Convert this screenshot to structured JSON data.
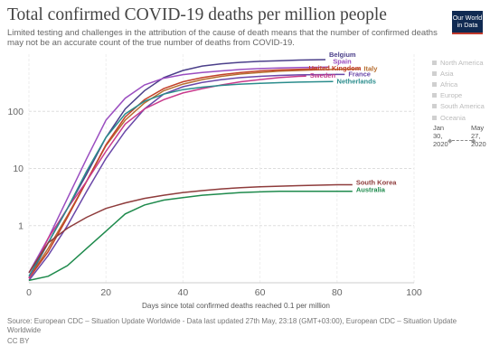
{
  "header": {
    "title": "Total confirmed COVID-19 deaths per million people",
    "subtitle": "Limited testing and challenges in the attribution of the cause of death means that the number of confirmed deaths may not be an accurate count of the true number of deaths from COVID-19."
  },
  "logo": {
    "line1": "Our World",
    "line2": "in Data"
  },
  "legend": {
    "items": [
      {
        "label": "North America"
      },
      {
        "label": "Asia"
      },
      {
        "label": "Africa"
      },
      {
        "label": "Europe"
      },
      {
        "label": "South America"
      },
      {
        "label": "Oceania"
      }
    ]
  },
  "timeline": {
    "start": "Jan 30, 2020",
    "end": "May 27, 2020",
    "start_l1": "Jan",
    "start_l2": "30,",
    "start_l3": "2020",
    "end_l1": "May",
    "end_l2": "27,",
    "end_l3": "2020"
  },
  "footer": {
    "source": "Source: European CDC – Situation Update Worldwide - Data last updated 27th May, 23:18 (GMT+03:00), European CDC – Situation Update Worldwide",
    "license": "CC BY"
  },
  "chart_data": {
    "type": "line",
    "title": "Total confirmed COVID-19 deaths per million people",
    "xlabel": "Days since total confirmed deaths reached 0.1 per million",
    "ylabel": "",
    "xlim": [
      0,
      100
    ],
    "ylim": [
      0.1,
      1000
    ],
    "yscale": "log",
    "x_ticks": [
      0,
      20,
      40,
      60,
      80,
      100
    ],
    "y_ticks": [
      1,
      10,
      100
    ],
    "y_tick_labels": [
      "1",
      "10",
      "100"
    ],
    "grid": true,
    "series": [
      {
        "name": "Belgium",
        "color": "#4b3f8a",
        "x": [
          0,
          5,
          10,
          15,
          20,
          25,
          30,
          35,
          40,
          45,
          50,
          55,
          60,
          65,
          70,
          75,
          77
        ],
        "y": [
          0.12,
          0.5,
          2,
          8,
          35,
          110,
          230,
          390,
          520,
          620,
          680,
          720,
          750,
          770,
          790,
          800,
          805
        ]
      },
      {
        "name": "Spain",
        "color": "#9a4dc0",
        "x": [
          0,
          5,
          10,
          15,
          20,
          25,
          30,
          35,
          40,
          45,
          50,
          55,
          60,
          65,
          70,
          75,
          78
        ],
        "y": [
          0.15,
          0.6,
          3,
          15,
          70,
          170,
          290,
          380,
          440,
          480,
          510,
          540,
          560,
          575,
          585,
          590,
          595
        ]
      },
      {
        "name": "Italy",
        "color": "#b66d2e",
        "x": [
          0,
          5,
          10,
          15,
          20,
          25,
          30,
          35,
          40,
          45,
          50,
          55,
          60,
          65,
          70,
          75,
          80,
          86
        ],
        "y": [
          0.12,
          0.4,
          1.5,
          6,
          25,
          70,
          140,
          230,
          300,
          360,
          410,
          450,
          480,
          505,
          520,
          535,
          545,
          550
        ]
      },
      {
        "name": "United Kingdom",
        "color": "#c3412a",
        "x": [
          0,
          5,
          10,
          15,
          20,
          25,
          30,
          35,
          40,
          45,
          50,
          55,
          60,
          65,
          70,
          75
        ],
        "y": [
          0.12,
          0.35,
          1.4,
          6,
          26,
          80,
          160,
          250,
          330,
          390,
          440,
          480,
          510,
          530,
          545,
          555
        ]
      },
      {
        "name": "France",
        "color": "#6a47a8",
        "x": [
          0,
          5,
          10,
          15,
          20,
          25,
          30,
          35,
          40,
          45,
          50,
          55,
          60,
          65,
          70,
          75,
          80,
          82
        ],
        "y": [
          0.11,
          0.3,
          1.0,
          4,
          15,
          45,
          110,
          200,
          270,
          320,
          360,
          390,
          410,
          425,
          435,
          440,
          442,
          443
        ]
      },
      {
        "name": "Sweden",
        "color": "#c83a8c",
        "x": [
          0,
          5,
          10,
          15,
          20,
          25,
          30,
          35,
          40,
          45,
          50,
          55,
          60,
          65,
          70,
          72
        ],
        "y": [
          0.12,
          0.6,
          2,
          6,
          20,
          60,
          110,
          160,
          210,
          250,
          290,
          330,
          360,
          390,
          410,
          415
        ]
      },
      {
        "name": "Netherlands",
        "color": "#2a8c8c",
        "x": [
          0,
          5,
          10,
          15,
          20,
          25,
          30,
          35,
          40,
          45,
          50,
          55,
          60,
          65,
          70,
          75,
          79
        ],
        "y": [
          0.13,
          0.5,
          2,
          9,
          35,
          90,
          150,
          200,
          240,
          265,
          285,
          300,
          310,
          318,
          325,
          330,
          332
        ]
      },
      {
        "name": "South Korea",
        "color": "#8e3b3b",
        "x": [
          0,
          5,
          10,
          15,
          20,
          25,
          30,
          35,
          40,
          45,
          50,
          55,
          60,
          65,
          70,
          75,
          80,
          84
        ],
        "y": [
          0.15,
          0.5,
          0.9,
          1.4,
          2.0,
          2.5,
          3.0,
          3.4,
          3.8,
          4.1,
          4.4,
          4.6,
          4.8,
          4.9,
          5.0,
          5.1,
          5.2,
          5.2
        ]
      },
      {
        "name": "Australia",
        "color": "#1e8a4c",
        "x": [
          0,
          5,
          10,
          15,
          20,
          25,
          30,
          35,
          40,
          45,
          50,
          55,
          60,
          65,
          70,
          75,
          80,
          84
        ],
        "y": [
          0.11,
          0.13,
          0.2,
          0.4,
          0.8,
          1.6,
          2.3,
          2.8,
          3.1,
          3.4,
          3.6,
          3.8,
          3.9,
          4.0,
          4.0,
          4.0,
          4.0,
          4.0
        ]
      }
    ]
  }
}
